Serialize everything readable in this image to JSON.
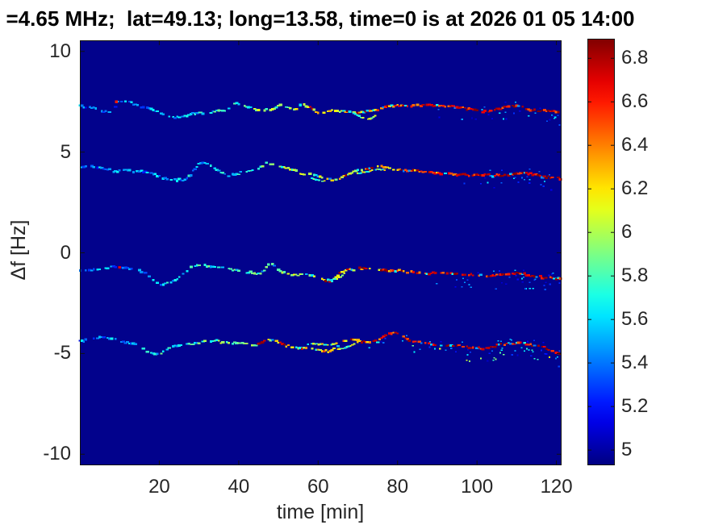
{
  "chart_data": {
    "type": "heatmap",
    "subtype": "doppler-shift-spectrogram",
    "title": "=4.65 MHz;  lat=49.13; long=13.58, time=0 is at 2026 01 05 14:00",
    "xlabel": "time [min]",
    "ylabel": "Δf [Hz]",
    "xlim": [
      0,
      121.3
    ],
    "ylim": [
      -10.55,
      10.55
    ],
    "xticks": [
      20,
      40,
      60,
      80,
      100,
      120
    ],
    "yticks": [
      10,
      5,
      0,
      -5,
      -10
    ],
    "grid": false,
    "colormap": "jet",
    "clim": [
      4.93,
      6.89
    ],
    "background_value": 4.93,
    "colorbar": {
      "position": "right",
      "ticks": [
        5,
        5.2,
        5.4,
        5.6,
        5.8,
        6,
        6.2,
        6.4,
        6.6,
        6.8
      ]
    },
    "color_ramp": {
      "t0": 15,
      "t1": 100,
      "v_start": 5.35,
      "v_end": 6.62,
      "spread": 0.5
    },
    "traces": [
      {
        "name": "doppler-trace-1",
        "mean_df_hz": 7.1,
        "scatter_start": 85,
        "scatter_strength": 0.5,
        "ramp_shift": 0,
        "points": [
          [
            0,
            7.3
          ],
          [
            4,
            7.15
          ],
          [
            7,
            7.0
          ],
          [
            8.8,
            6.98
          ],
          [
            9.2,
            7.55
          ],
          [
            12,
            7.5
          ],
          [
            15,
            7.3
          ],
          [
            18,
            7.15
          ],
          [
            21,
            6.85
          ],
          [
            23,
            6.7
          ],
          [
            26,
            6.75
          ],
          [
            28,
            6.9
          ],
          [
            31,
            6.95
          ],
          [
            34,
            7.0
          ],
          [
            37,
            7.1
          ],
          [
            39,
            7.45
          ],
          [
            41,
            7.3
          ],
          [
            43.5,
            7.2
          ],
          [
            46,
            7.05
          ],
          [
            48,
            7.1
          ],
          [
            50,
            7.3
          ],
          [
            52,
            7.25
          ],
          [
            54,
            7.1
          ],
          [
            56,
            7.4
          ],
          [
            58,
            7.2
          ],
          [
            60,
            6.95
          ],
          [
            63,
            7.05
          ],
          [
            66,
            7.05
          ],
          [
            69,
            6.95
          ],
          [
            71,
            7.0
          ],
          [
            73,
            7.05
          ],
          [
            75,
            7.1
          ],
          [
            77,
            7.25
          ],
          [
            80,
            7.3
          ],
          [
            84,
            7.3
          ],
          [
            87,
            7.35
          ],
          [
            90,
            7.3
          ],
          [
            93,
            7.3
          ],
          [
            96,
            7.2
          ],
          [
            99,
            7.1
          ],
          [
            102,
            7.0
          ],
          [
            105,
            7.1
          ],
          [
            107,
            7.25
          ],
          [
            109,
            7.3
          ],
          [
            111,
            7.25
          ],
          [
            113,
            7.1
          ],
          [
            115,
            7.05
          ],
          [
            117,
            7.1
          ],
          [
            119,
            7.05
          ],
          [
            121,
            7.0
          ]
        ],
        "branches": [
          [
            [
              69,
              6.95
            ],
            [
              71,
              6.7
            ],
            [
              73,
              6.65
            ],
            [
              75,
              6.85
            ],
            [
              76,
              7.0
            ]
          ]
        ],
        "hotspots": [
          [
            9.2,
            7.5
          ]
        ]
      },
      {
        "name": "doppler-trace-2",
        "mean_df_hz": 4.0,
        "scatter_start": 92,
        "scatter_strength": 0.45,
        "ramp_shift": 6,
        "points": [
          [
            0,
            4.3
          ],
          [
            3,
            4.25
          ],
          [
            6,
            4.2
          ],
          [
            9,
            4.05
          ],
          [
            11,
            4.1
          ],
          [
            13,
            4.05
          ],
          [
            15,
            4.05
          ],
          [
            17,
            4.0
          ],
          [
            20,
            3.8
          ],
          [
            23,
            3.65
          ],
          [
            26,
            3.6
          ],
          [
            28,
            3.9
          ],
          [
            30,
            4.4
          ],
          [
            31.5,
            4.5
          ],
          [
            33,
            4.3
          ],
          [
            35,
            4.1
          ],
          [
            37,
            3.85
          ],
          [
            39,
            3.9
          ],
          [
            41,
            4.0
          ],
          [
            43,
            4.05
          ],
          [
            45,
            4.2
          ],
          [
            47,
            4.45
          ],
          [
            48.5,
            4.4
          ],
          [
            50,
            4.3
          ],
          [
            52,
            4.2
          ],
          [
            55,
            4.0
          ],
          [
            57,
            3.9
          ],
          [
            60,
            3.85
          ],
          [
            62,
            3.7
          ],
          [
            64,
            3.6
          ],
          [
            66,
            3.75
          ],
          [
            68,
            3.95
          ],
          [
            70,
            4.1
          ],
          [
            73,
            4.2
          ],
          [
            75,
            4.3
          ],
          [
            77,
            4.25
          ],
          [
            79,
            4.15
          ],
          [
            82,
            4.1
          ],
          [
            85,
            4.05
          ],
          [
            87,
            4.0
          ],
          [
            90,
            3.95
          ],
          [
            93,
            3.9
          ],
          [
            96,
            3.9
          ],
          [
            99,
            3.85
          ],
          [
            102,
            3.85
          ],
          [
            105,
            3.85
          ],
          [
            107,
            3.85
          ],
          [
            110,
            3.95
          ],
          [
            112,
            3.95
          ],
          [
            114,
            3.9
          ],
          [
            116,
            3.8
          ],
          [
            118,
            3.75
          ],
          [
            121,
            3.7
          ]
        ],
        "branches": [
          [
            [
              58,
              3.72
            ],
            [
              60,
              3.6
            ],
            [
              62,
              3.55
            ]
          ],
          [
            [
              70,
              3.95
            ],
            [
              73,
              4.05
            ],
            [
              75,
              4.15
            ],
            [
              77,
              4.1
            ]
          ]
        ],
        "hotspots": []
      },
      {
        "name": "doppler-trace-3",
        "mean_df_hz": -1.0,
        "scatter_start": 83,
        "scatter_strength": 0.5,
        "ramp_shift": 0,
        "points": [
          [
            0,
            -0.9
          ],
          [
            3,
            -0.85
          ],
          [
            6,
            -0.8
          ],
          [
            9,
            -0.7
          ],
          [
            12,
            -0.75
          ],
          [
            15,
            -0.9
          ],
          [
            17,
            -1.1
          ],
          [
            20,
            -1.6
          ],
          [
            22,
            -1.55
          ],
          [
            24,
            -1.4
          ],
          [
            26,
            -1.0
          ],
          [
            28,
            -0.7
          ],
          [
            30,
            -0.6
          ],
          [
            32,
            -0.65
          ],
          [
            34,
            -0.7
          ],
          [
            37,
            -0.8
          ],
          [
            40,
            -0.9
          ],
          [
            43,
            -1.0
          ],
          [
            45.5,
            -1.05
          ],
          [
            47,
            -0.75
          ],
          [
            48,
            -0.5
          ],
          [
            49,
            -0.65
          ],
          [
            50,
            -0.9
          ],
          [
            51.5,
            -1.0
          ],
          [
            54,
            -1.1
          ],
          [
            57,
            -1.1
          ],
          [
            59,
            -1.15
          ],
          [
            61,
            -1.3
          ],
          [
            63,
            -1.4
          ],
          [
            65,
            -1.1
          ],
          [
            67,
            -0.85
          ],
          [
            70,
            -0.8
          ],
          [
            73,
            -0.8
          ],
          [
            76,
            -0.85
          ],
          [
            78,
            -0.9
          ],
          [
            80,
            -0.9
          ],
          [
            83,
            -0.95
          ],
          [
            85,
            -1.0
          ],
          [
            88,
            -1.05
          ],
          [
            91,
            -1.0
          ],
          [
            94,
            -1.05
          ],
          [
            97,
            -1.1
          ],
          [
            100,
            -1.1
          ],
          [
            103,
            -1.15
          ],
          [
            105,
            -1.1
          ],
          [
            108,
            -1.05
          ],
          [
            110,
            -1.0
          ],
          [
            112,
            -1.05
          ],
          [
            114,
            -1.15
          ],
          [
            116,
            -1.2
          ],
          [
            118,
            -1.25
          ],
          [
            121,
            -1.3
          ]
        ],
        "branches": [
          [
            [
              63,
              -1.35
            ],
            [
              64.5,
              -1.3
            ],
            [
              66,
              -1.15
            ],
            [
              67,
              -0.95
            ]
          ]
        ],
        "hotspots": [
          [
            10,
            -0.72
          ]
        ]
      },
      {
        "name": "doppler-trace-4",
        "mean_df_hz": -4.5,
        "scatter_start": 68,
        "scatter_strength": 0.9,
        "ramp_shift": -10,
        "points": [
          [
            0,
            -4.4
          ],
          [
            3,
            -4.3
          ],
          [
            5,
            -4.2
          ],
          [
            7,
            -4.2
          ],
          [
            9,
            -4.3
          ],
          [
            12,
            -4.45
          ],
          [
            15,
            -4.6
          ],
          [
            17,
            -4.9
          ],
          [
            20,
            -5.1
          ],
          [
            22,
            -4.8
          ],
          [
            24,
            -4.6
          ],
          [
            26,
            -4.6
          ],
          [
            28,
            -4.55
          ],
          [
            30,
            -4.45
          ],
          [
            32,
            -4.35
          ],
          [
            34,
            -4.35
          ],
          [
            36,
            -4.45
          ],
          [
            38,
            -4.5
          ],
          [
            40,
            -4.45
          ],
          [
            42,
            -4.5
          ],
          [
            44,
            -4.6
          ],
          [
            46,
            -4.45
          ],
          [
            47.5,
            -4.3
          ],
          [
            49,
            -4.35
          ],
          [
            51,
            -4.55
          ],
          [
            53,
            -4.65
          ],
          [
            55,
            -4.7
          ],
          [
            57,
            -4.75
          ],
          [
            59,
            -4.8
          ],
          [
            61,
            -4.85
          ],
          [
            63,
            -4.9
          ],
          [
            65,
            -4.6
          ],
          [
            67,
            -4.35
          ],
          [
            69,
            -4.3
          ],
          [
            71,
            -4.4
          ],
          [
            73,
            -4.45
          ],
          [
            75,
            -4.4
          ],
          [
            77,
            -4.1
          ],
          [
            79,
            -4.0
          ],
          [
            81,
            -4.1
          ],
          [
            83,
            -4.35
          ],
          [
            85,
            -4.45
          ],
          [
            87,
            -4.5
          ],
          [
            89,
            -4.55
          ],
          [
            91,
            -4.6
          ],
          [
            93,
            -4.6
          ],
          [
            95,
            -4.6
          ],
          [
            97,
            -4.65
          ],
          [
            99,
            -4.7
          ],
          [
            101,
            -4.75
          ],
          [
            103,
            -4.7
          ],
          [
            105,
            -4.6
          ],
          [
            107,
            -4.55
          ],
          [
            109,
            -4.5
          ],
          [
            111,
            -4.45
          ],
          [
            113,
            -4.55
          ],
          [
            115,
            -4.6
          ],
          [
            117,
            -4.7
          ],
          [
            119,
            -4.9
          ],
          [
            121,
            -5.05
          ]
        ],
        "branches": [
          [
            [
              57,
              -4.55
            ],
            [
              59,
              -4.5
            ],
            [
              61,
              -4.55
            ],
            [
              63,
              -4.6
            ],
            [
              65,
              -4.45
            ]
          ],
          [
            [
              65,
              -4.8
            ],
            [
              67,
              -4.7
            ],
            [
              69,
              -4.55
            ],
            [
              70,
              -4.45
            ]
          ]
        ],
        "hotspots": []
      }
    ]
  },
  "colors": {
    "figure_bg": "#ffffff",
    "plot_bg": "#02028c",
    "axis_line": "#111111",
    "tick_text": "#262626",
    "title_text": "#000000"
  }
}
